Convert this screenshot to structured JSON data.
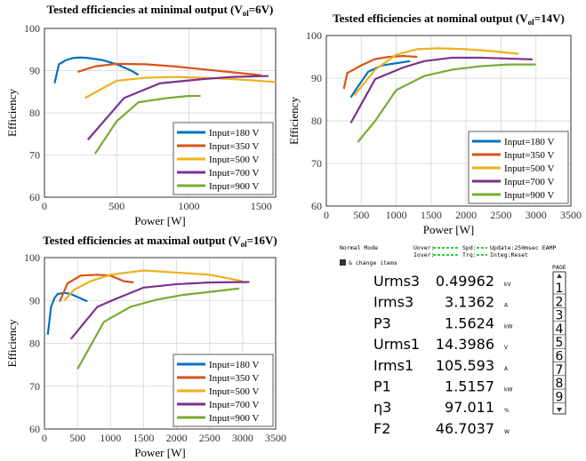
{
  "chart_data": [
    {
      "type": "line",
      "title": "Tested efficiencies at minimal output (V",
      "title_subscript": "ol",
      "title_suffix": "=6V)",
      "x_label": "Power [W]",
      "y_label": "Efficiency",
      "xlim": [
        0,
        1600
      ],
      "xticks": [
        0,
        500,
        1000,
        1500
      ],
      "ylim": [
        60,
        100
      ],
      "yticks": [
        60,
        70,
        80,
        90,
        100
      ],
      "grid": true,
      "legend": "lower right",
      "series": [
        {
          "name": "Input=180 V",
          "color": "#0072bd",
          "x": [
            70,
            100,
            150,
            200,
            250,
            300,
            400,
            500,
            600,
            650
          ],
          "values": [
            87,
            91.5,
            92.5,
            93,
            93.1,
            93,
            92.5,
            91.5,
            90,
            89
          ]
        },
        {
          "name": "Input=350 V",
          "color": "#d95319",
          "x": [
            230,
            350,
            500,
            700,
            900,
            1100,
            1300,
            1500
          ],
          "values": [
            89.7,
            91,
            91.6,
            91.5,
            91,
            90.3,
            89.6,
            88.9
          ]
        },
        {
          "name": "Input=500 V",
          "color": "#edb120",
          "x": [
            280,
            500,
            700,
            900,
            1100,
            1300,
            1600
          ],
          "values": [
            83.5,
            87.6,
            88.3,
            88.5,
            88.3,
            88,
            87.3
          ]
        },
        {
          "name": "Input=700 V",
          "color": "#7e2f8e",
          "x": [
            300,
            550,
            800,
            1100,
            1300,
            1500,
            1550
          ],
          "values": [
            73.6,
            83.5,
            87,
            88,
            88.5,
            88.7,
            88.7
          ]
        },
        {
          "name": "Input=900 V",
          "color": "#77ac30",
          "x": [
            350,
            500,
            650,
            850,
            1000,
            1080
          ],
          "values": [
            70.3,
            78,
            82.5,
            83.5,
            84,
            84
          ]
        }
      ]
    },
    {
      "type": "line",
      "title": "Tested efficiencies at nominal output (V",
      "title_subscript": "ol",
      "title_suffix": "=14V)",
      "x_label": "Power [W]",
      "y_label": "Efficiency",
      "xlim": [
        0,
        3500
      ],
      "xticks": [
        0,
        500,
        1000,
        1500,
        2000,
        2500,
        3000,
        3500
      ],
      "ylim": [
        60,
        100
      ],
      "yticks": [
        60,
        70,
        80,
        90,
        100
      ],
      "grid": true,
      "legend": "lower right",
      "series": [
        {
          "name": "Input=180 V",
          "color": "#0072bd",
          "x": [
            350,
            450,
            600,
            800,
            1000,
            1200
          ],
          "values": [
            85.5,
            88,
            91.5,
            93,
            93.5,
            94
          ]
        },
        {
          "name": "Input=350 V",
          "color": "#d95319",
          "x": [
            250,
            300,
            500,
            700,
            900,
            1100,
            1300
          ],
          "values": [
            87.5,
            91.2,
            93,
            94.5,
            95,
            95.2,
            95
          ]
        },
        {
          "name": "Input=500 V",
          "color": "#edb120",
          "x": [
            400,
            700,
            1000,
            1300,
            1600,
            2000,
            2400,
            2750
          ],
          "values": [
            86,
            92,
            95.5,
            96.8,
            97,
            96.8,
            96.3,
            95.7
          ]
        },
        {
          "name": "Input=700 V",
          "color": "#7e2f8e",
          "x": [
            350,
            700,
            1100,
            1400,
            1800,
            2200,
            2600,
            2950
          ],
          "values": [
            79.5,
            89.8,
            92.5,
            94,
            94.8,
            94.8,
            94.6,
            94.4
          ]
        },
        {
          "name": "Input=900 V",
          "color": "#77ac30",
          "x": [
            450,
            700,
            1000,
            1400,
            1800,
            2200,
            2600,
            3000
          ],
          "values": [
            75,
            80,
            87.2,
            90.5,
            92,
            92.8,
            93.2,
            93.2
          ]
        }
      ]
    },
    {
      "type": "line",
      "title": "Tested efficiencies at maximal output (V",
      "title_subscript": "ol",
      "title_suffix": "=16V)",
      "x_label": "Power [W]",
      "y_label": "Efficiency",
      "xlim": [
        0,
        3500
      ],
      "xticks": [
        0,
        500,
        1000,
        1500,
        2000,
        2500,
        3000,
        3500
      ],
      "ylim": [
        60,
        100
      ],
      "yticks": [
        60,
        70,
        80,
        90,
        100
      ],
      "grid": true,
      "legend": "lower right",
      "series": [
        {
          "name": "Input=180 V",
          "color": "#0072bd",
          "x": [
            50,
            100,
            150,
            200,
            300,
            400,
            500,
            650
          ],
          "values": [
            82,
            88.5,
            90.5,
            91.5,
            91.8,
            91.5,
            90.8,
            89.8
          ]
        },
        {
          "name": "Input=350 V",
          "color": "#d95319",
          "x": [
            230,
            350,
            550,
            800,
            1000,
            1200,
            1350
          ],
          "values": [
            89.7,
            94,
            95.8,
            96,
            95.8,
            94.5,
            94.2
          ]
        },
        {
          "name": "Input=500 V",
          "color": "#edb120",
          "x": [
            300,
            450,
            700,
            1000,
            1500,
            2000,
            2500,
            3000
          ],
          "values": [
            90,
            92.5,
            94.5,
            96,
            97,
            96.5,
            96,
            94.5
          ]
        },
        {
          "name": "Input=700 V",
          "color": "#7e2f8e",
          "x": [
            400,
            800,
            1100,
            1500,
            2000,
            2500,
            3100
          ],
          "values": [
            81,
            88.5,
            90.5,
            93,
            93.8,
            94.2,
            94.3
          ]
        },
        {
          "name": "Input=900 V",
          "color": "#77ac30",
          "x": [
            500,
            900,
            1300,
            1700,
            2100,
            2500,
            2950
          ],
          "values": [
            74,
            85,
            88.5,
            90.2,
            91.3,
            92,
            92.8
          ]
        }
      ]
    }
  ],
  "meter": {
    "mode": "Normal Mode",
    "uover": "Uover:",
    "iover": "Iover:",
    "spd": "Spd:",
    "trq": "Trq:",
    "update": "Update:250msec EAMP",
    "integ": "Integ:Reset",
    "change": "& change items",
    "page_label": "PAGE",
    "pages": [
      1,
      2,
      3,
      4,
      5,
      6,
      7,
      8,
      9
    ],
    "rows": [
      {
        "name": "Urms3",
        "value": 0.49962,
        "unit": "kV"
      },
      {
        "name": "Irms3",
        "value": 3.1362,
        "unit": "A"
      },
      {
        "name": "P3",
        "value": 1.5624,
        "unit": "kW"
      },
      {
        "name": "Urms1",
        "value": 14.3986,
        "unit": "V"
      },
      {
        "name": "Irms1",
        "value": 105.593,
        "unit": "A"
      },
      {
        "name": "P1",
        "value": 1.5157,
        "unit": "kW"
      },
      {
        "name": "η3",
        "value": 97.011,
        "unit": "%"
      },
      {
        "name": "F2",
        "value": 46.7037,
        "unit": "W"
      }
    ]
  }
}
